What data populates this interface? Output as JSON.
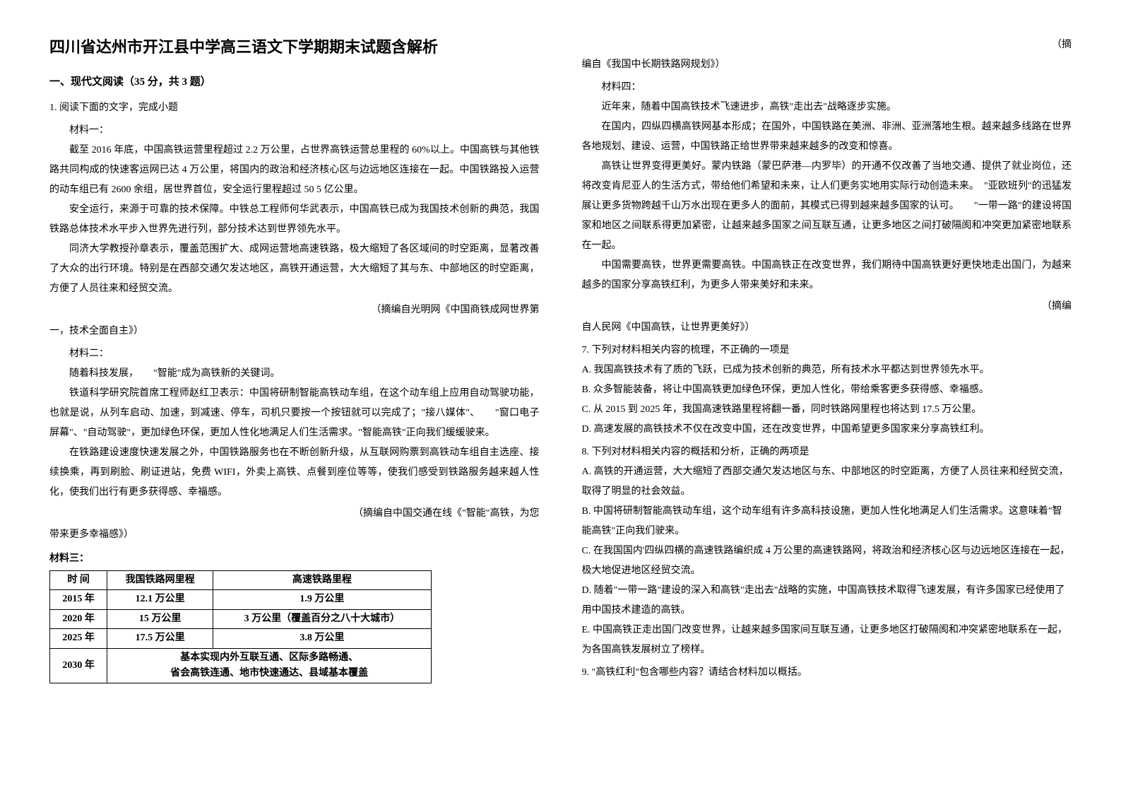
{
  "title": "四川省达州市开江县中学高三语文下学期期末试题含解析",
  "section1": "一、现代文阅读（35 分，共 3 题）",
  "q1": "1. 阅读下面的文字，完成小题",
  "m1_label": "材料一：",
  "m1_p1": "截至 2016 年底，中国高铁运营里程超过 2.2 万公里，占世界高铁运营总里程的 60%以上。中国高铁与其他铁路共同构成的快速客运网已达 4 万公里，将国内的政治和经济核心区与边远地区连接在一起。中国铁路投入运营的动车组已有 2600 余组，居世界首位，安全运行里程超过 50 5 亿公里。",
  "m1_p2": "安全运行，来源于可靠的技术保障。中铁总工程师何华武表示，中国高铁已成为我国技术创新的典范，我国铁路总体技术水平步入世界先进行列，部分技术达到世界领先水平。",
  "m1_p3": "同济大学教授孙章表示，覆盖范围扩大、成网运营地高速铁路，极大缩短了各区域间的时空距离，显著改善了大众的出行环境。特别是在西部交通欠发达地区，高铁开通运营，大大缩短了其与东、中部地区的时空距离，方便了人员往来和经贸交流。",
  "m1_src_a": "（摘编自光明网《中国商铁成网世界第",
  "m1_src_b": "一，技术全面自主》）",
  "m2_label": "材料二：",
  "m2_p1": "随着科技发展，　　\"智能\"成为高铁新的关键词。",
  "m2_p2": "铁道科学研究院首席工程师赵红卫表示：中国将研制智能高铁动车组，在这个动车组上应用自动驾驶功能，也就是说，从列车启动、加速，到减速、停车，司机只要按一个按钮就可以完成了；\"接八媒体\"、　　\"窗口电子屏幕\"、\"自动驾驶\"，更加绿色环保，更加人性化地满足人们生活需求。\"智能高铁\"正向我们缓缓驶来。",
  "m2_p3": "在铁路建设速度快速发展之外，中国铁路服务也在不断创新升级，从互联网购票到高铁动车组自主选座、接续换乘，再到刷脸、刷证进站，免费 WIFI，外卖上高铁、点餐到座位等等，使我们感受到铁路服务越来越人性化，使我们出行有更多获得感、幸福感。",
  "m2_src_a": "（摘编自中国交通在线《\"智能\"高铁，为您",
  "m2_src_b": "带来更多幸福感》）",
  "m3_label": "材料三：",
  "table": {
    "headers": [
      "时 间",
      "我国铁路网里程",
      "高速铁路里程"
    ],
    "rows": [
      [
        "2015 年",
        "12.1 万公里",
        "1.9 万公里"
      ],
      [
        "2020 年",
        "15 万公里",
        "3 万公里（覆盖百分之八十大城市）"
      ],
      [
        "2025 年",
        "17.5 万公里",
        "3.8 万公里"
      ]
    ],
    "last_year": "2030 年",
    "last_merged": "基本实现内外互联互通、区际多路畅通、<br>省会高铁连通、地市快速通达、县域基本覆盖"
  },
  "m3_src_a": "（摘",
  "m3_src_b": "编自《我国中长期铁路网规划》）",
  "m4_label": "材料四：",
  "m4_p1": "近年来，随着中国高铁技术飞速进步，高铁\"走出去\"战略逐步实施。",
  "m4_p2": "在国内，四纵四横高铁网基本形成；在国外，中国铁路在美洲、非洲、亚洲落地生根。越来越多线路在世界各地规划、建设、运营，中国铁路正给世界带来越来越多的改变和惊喜。",
  "m4_p3": "高铁让世界变得更美好。蒙内铁路（蒙巴萨港—内罗毕）的开通不仅改善了当地交通、提供了就业岗位，还将改变肯尼亚人的生活方式，带给他们希望和未来，让人们更务实地用实际行动创造未来。　\"亚欧班列\"的迅猛发展让更多货物跨越千山万水出现在更多人的面前，其模式已得到越来越多国家的认可。　　\"一带一路\"的建设将国家和地区之间联系得更加紧密，让越来越多国家之间互联互通，让更多地区之间打破隔阂和冲突更加紧密地联系在一起。",
  "m4_p4": "中国需要高铁，世界更需要高铁。中国高铁正在改变世界，我们期待中国高铁更好更快地走出国门，为越来越多的国家分享高铁红利，为更多人带来美好和未来。",
  "m4_src_a": "（摘编",
  "m4_src_b": "自人民网《中国高铁，让世界更美好》）",
  "q7": "7.  下列对材料相关内容的梳理，不正确的一项是",
  "q7a": "A.  我国高铁技术有了质的飞跃，已成为技术创新的典范，所有技术水平都达到世界领先水平。",
  "q7b": "B.  众多智能装备，将让中国高铁更加绿色环保，更加人性化，带给乘客更多获得感、幸福感。",
  "q7c": "C.  从 2015 到 2025 年，我国高速铁路里程将翻一番，同时铁路网里程也将达到 17.5 万公里。",
  "q7d": "D.  高速发展的高铁技术不仅在改变中国，还在改变世界，中国希望更多国家来分享高铁红利。",
  "q8": "8.  下列对材料相关内容的概括和分析，正确的两项是",
  "q8a": "A.  高铁的开通运营，大大缩短了西部交通欠发达地区与东、中部地区的时空距离，方便了人员往来和经贸交流，取得了明显的社会效益。",
  "q8b": "B.  中国将研制智能高铁动车组，这个动车组有许多高科技设施，更加人性化地满足人们生活需求。这意味着\"智能高铁\"正向我们驶来。",
  "q8c": "C.  在我国国内'四纵四横的高速铁路编织成 4 万公里的高速铁路网，将政治和经济核心区与边远地区连接在一起，极大地促进地区经贸交流。",
  "q8d": "D.  随着\"一带一路\"建设的深入和高铁\"走出去\"战略的实施，中国高铁技术取得飞速发展，有许多国家已经使用了用中国技术建造的高铁。",
  "q8e": "E.  中国高铁正走出国门改变世界，让越来越多国家间互联互通，让更多地区打破隔阂和冲突紧密地联系在一起，为各国高铁发展树立了榜样。",
  "q9": "9.  \"高铁红利\"包含哪些内容？请结合材料加以概括。"
}
